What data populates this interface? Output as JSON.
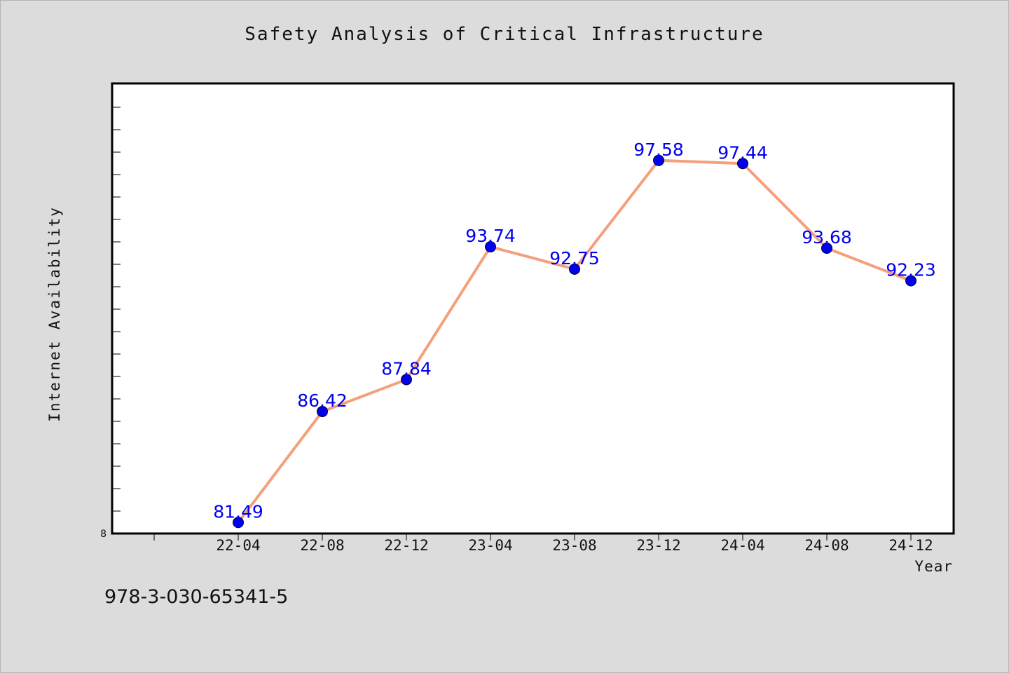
{
  "chart_data": {
    "type": "line",
    "title": "Safety Analysis of Critical Infrastructure",
    "xlabel": "Year",
    "ylabel": "Internet Availability",
    "categories": [
      "22-04",
      "22-08",
      "22-12",
      "23-04",
      "23-08",
      "23-12",
      "24-04",
      "24-08",
      "24-12"
    ],
    "series": [
      {
        "values": [
          81.49,
          86.42,
          87.84,
          93.74,
          92.75,
          97.58,
          97.44,
          93.68,
          92.23
        ],
        "data_labels": [
          "81.49",
          "86.42",
          "87.84",
          "93.74",
          "92.75",
          "97.58",
          "97.44",
          "93.68",
          "92.23"
        ]
      }
    ],
    "y_tick_label": "8",
    "ylim": [
      81.0,
      101.0
    ],
    "grid": false,
    "legend": "none",
    "colors": {
      "line": "#f4a07d",
      "marker": "#0000ee",
      "marker_stroke": "#000033",
      "data_label": "#0000ee",
      "plot_background": "#ffffff",
      "figure_background": "#dcdcdc"
    }
  },
  "footer": {
    "isbn": "978-3-030-65341-5"
  }
}
